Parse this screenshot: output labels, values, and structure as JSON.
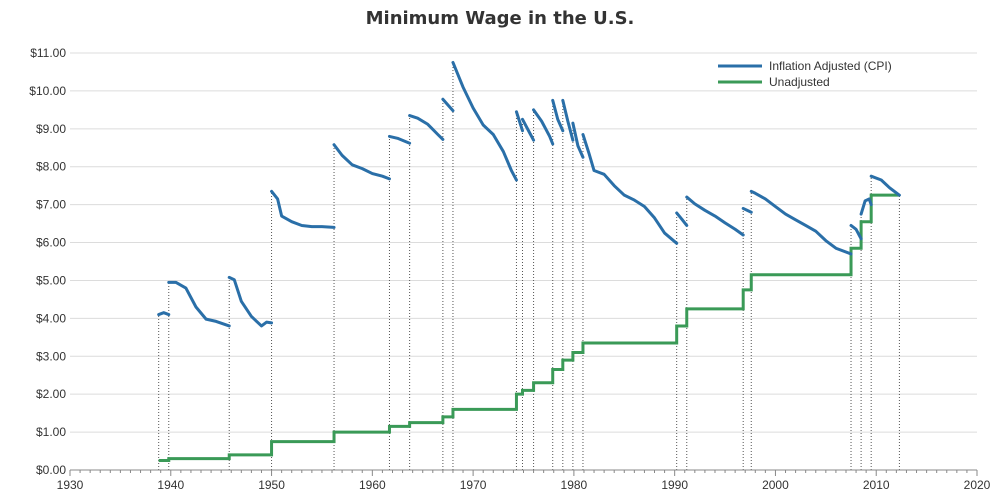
{
  "chart_data": {
    "type": "line",
    "title": "Minimum Wage in the U.S.",
    "xlabel": "",
    "ylabel": "",
    "xlim": [
      1930,
      2020
    ],
    "ylim": [
      0,
      11
    ],
    "x_ticks": [
      "1930",
      "1940",
      "1950",
      "1960",
      "1970",
      "1980",
      "1990",
      "2000",
      "2010",
      "2020"
    ],
    "y_ticks": [
      "$0.00",
      "$1.00",
      "$2.00",
      "$3.00",
      "$4.00",
      "$5.00",
      "$6.00",
      "$7.00",
      "$8.00",
      "$9.00",
      "$10.00",
      "$11.00"
    ],
    "grid": "horizontal",
    "legend_position": "top-right",
    "series": [
      {
        "name": "Inflation Adjusted (CPI)",
        "color": "#2a6fa8",
        "style": "line",
        "segments": [
          [
            [
              1938.8,
              4.1
            ],
            [
              1939.3,
              4.15
            ],
            [
              1939.8,
              4.1
            ]
          ],
          [
            [
              1939.8,
              4.95
            ],
            [
              1940.5,
              4.95
            ],
            [
              1941.5,
              4.8
            ],
            [
              1942.5,
              4.3
            ],
            [
              1943.5,
              3.98
            ],
            [
              1944.5,
              3.92
            ],
            [
              1945.8,
              3.8
            ]
          ],
          [
            [
              1945.8,
              5.08
            ],
            [
              1946.3,
              5.02
            ],
            [
              1947.0,
              4.45
            ],
            [
              1948.0,
              4.05
            ],
            [
              1949.0,
              3.8
            ],
            [
              1949.5,
              3.9
            ],
            [
              1950.0,
              3.88
            ]
          ],
          [
            [
              1950.0,
              7.35
            ],
            [
              1950.6,
              7.15
            ],
            [
              1951.0,
              6.7
            ],
            [
              1952.0,
              6.55
            ],
            [
              1953.0,
              6.45
            ],
            [
              1954.0,
              6.42
            ],
            [
              1955.0,
              6.42
            ],
            [
              1956.2,
              6.4
            ]
          ],
          [
            [
              1956.2,
              8.58
            ],
            [
              1957.0,
              8.3
            ],
            [
              1958.0,
              8.05
            ],
            [
              1959.0,
              7.95
            ],
            [
              1960.0,
              7.82
            ],
            [
              1961.0,
              7.75
            ],
            [
              1961.7,
              7.68
            ]
          ],
          [
            [
              1961.7,
              8.8
            ],
            [
              1962.5,
              8.75
            ],
            [
              1963.7,
              8.62
            ]
          ],
          [
            [
              1963.7,
              9.35
            ],
            [
              1964.5,
              9.28
            ],
            [
              1965.5,
              9.12
            ],
            [
              1966.5,
              8.85
            ],
            [
              1967.0,
              8.72
            ]
          ],
          [
            [
              1967.0,
              9.78
            ],
            [
              1967.6,
              9.6
            ],
            [
              1968.0,
              9.48
            ]
          ],
          [
            [
              1968.0,
              10.75
            ],
            [
              1969.0,
              10.1
            ],
            [
              1970.0,
              9.55
            ],
            [
              1971.0,
              9.1
            ],
            [
              1972.0,
              8.85
            ],
            [
              1973.0,
              8.4
            ],
            [
              1973.8,
              7.9
            ],
            [
              1974.3,
              7.65
            ]
          ],
          [
            [
              1974.3,
              9.45
            ],
            [
              1974.9,
              8.95
            ]
          ],
          [
            [
              1974.9,
              9.25
            ],
            [
              1975.6,
              8.9
            ],
            [
              1976.0,
              8.7
            ]
          ],
          [
            [
              1976.0,
              9.5
            ],
            [
              1976.8,
              9.2
            ],
            [
              1977.6,
              8.8
            ],
            [
              1977.9,
              8.6
            ]
          ],
          [
            [
              1977.9,
              9.75
            ],
            [
              1978.4,
              9.25
            ],
            [
              1978.9,
              8.95
            ]
          ],
          [
            [
              1978.9,
              9.75
            ],
            [
              1979.4,
              9.2
            ],
            [
              1979.9,
              8.7
            ]
          ],
          [
            [
              1979.9,
              9.15
            ],
            [
              1980.4,
              8.55
            ],
            [
              1980.9,
              8.25
            ]
          ],
          [
            [
              1980.9,
              8.85
            ],
            [
              1981.5,
              8.35
            ],
            [
              1982.0,
              7.9
            ],
            [
              1983.0,
              7.8
            ],
            [
              1984.0,
              7.5
            ],
            [
              1985.0,
              7.25
            ],
            [
              1986.0,
              7.12
            ],
            [
              1987.0,
              6.95
            ],
            [
              1988.0,
              6.65
            ],
            [
              1989.0,
              6.25
            ],
            [
              1990.2,
              5.98
            ]
          ],
          [
            [
              1990.2,
              6.78
            ],
            [
              1990.7,
              6.62
            ],
            [
              1991.2,
              6.45
            ]
          ],
          [
            [
              1991.2,
              7.2
            ],
            [
              1992.0,
              7.02
            ],
            [
              1993.0,
              6.85
            ],
            [
              1994.0,
              6.7
            ],
            [
              1995.0,
              6.52
            ],
            [
              1996.0,
              6.35
            ],
            [
              1996.8,
              6.2
            ]
          ],
          [
            [
              1996.8,
              6.9
            ],
            [
              1997.6,
              6.8
            ]
          ],
          [
            [
              1997.6,
              7.35
            ],
            [
              1998.0,
              7.3
            ],
            [
              1999.0,
              7.15
            ],
            [
              2000.0,
              6.95
            ],
            [
              2001.0,
              6.75
            ],
            [
              2002.0,
              6.6
            ],
            [
              2003.0,
              6.45
            ],
            [
              2004.0,
              6.3
            ],
            [
              2005.0,
              6.05
            ],
            [
              2006.0,
              5.85
            ],
            [
              2007.5,
              5.7
            ]
          ],
          [
            [
              2007.5,
              6.45
            ],
            [
              2008.0,
              6.35
            ],
            [
              2008.5,
              6.1
            ]
          ],
          [
            [
              2008.5,
              6.75
            ],
            [
              2008.9,
              7.1
            ],
            [
              2009.3,
              7.15
            ],
            [
              2009.5,
              7.0
            ]
          ],
          [
            [
              2009.5,
              7.75
            ],
            [
              2010.5,
              7.65
            ],
            [
              2011.3,
              7.45
            ],
            [
              2012.3,
              7.25
            ]
          ]
        ]
      },
      {
        "name": "Unadjusted",
        "color": "#3a9a57",
        "style": "step",
        "points": [
          [
            1938.8,
            0.25
          ],
          [
            1939.8,
            0.3
          ],
          [
            1945.8,
            0.4
          ],
          [
            1950.0,
            0.75
          ],
          [
            1956.2,
            1.0
          ],
          [
            1961.7,
            1.15
          ],
          [
            1963.7,
            1.25
          ],
          [
            1967.0,
            1.4
          ],
          [
            1968.0,
            1.6
          ],
          [
            1974.3,
            2.0
          ],
          [
            1974.9,
            2.1
          ],
          [
            1976.0,
            2.3
          ],
          [
            1977.9,
            2.65
          ],
          [
            1978.9,
            2.9
          ],
          [
            1979.9,
            3.1
          ],
          [
            1980.9,
            3.35
          ],
          [
            1990.2,
            3.8
          ],
          [
            1991.2,
            4.25
          ],
          [
            1996.8,
            4.75
          ],
          [
            1997.6,
            5.15
          ],
          [
            2007.5,
            5.85
          ],
          [
            2008.5,
            6.55
          ],
          [
            2009.5,
            7.25
          ],
          [
            2012.3,
            7.25
          ]
        ]
      }
    ],
    "reference_lines_x": [
      1938.8,
      1939.8,
      1945.8,
      1950.0,
      1956.2,
      1961.7,
      1963.7,
      1967.0,
      1968.0,
      1974.3,
      1974.9,
      1976.0,
      1977.9,
      1978.9,
      1979.9,
      1980.9,
      1990.2,
      1991.2,
      1996.8,
      1997.6,
      2007.5,
      2008.5,
      2009.5,
      2012.3
    ]
  }
}
